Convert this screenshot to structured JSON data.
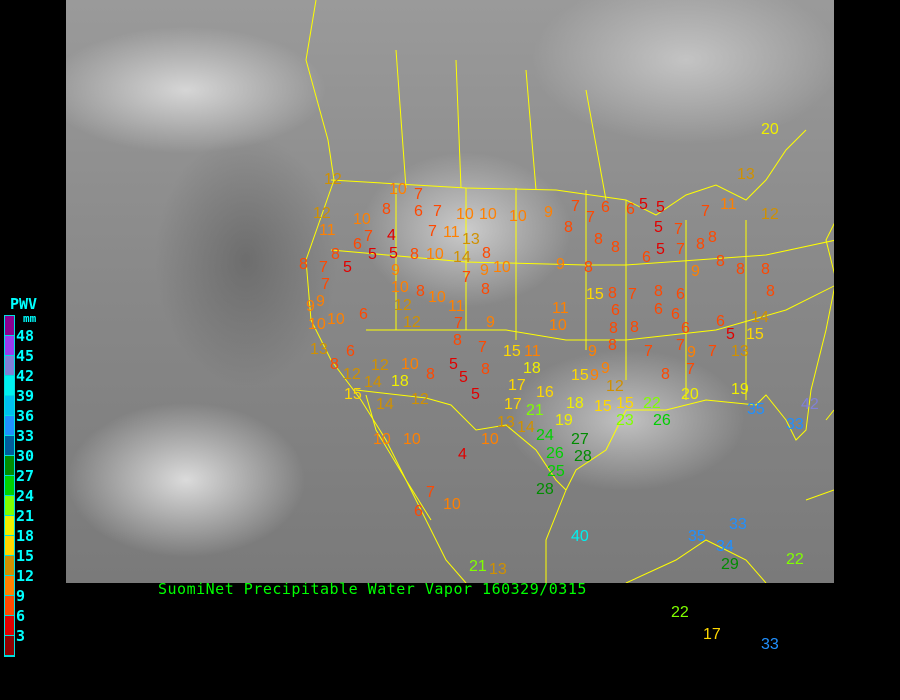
{
  "caption": "SuomiNet Precipitable Water Vapor 160329/0315",
  "legend": {
    "title": "PWV",
    "unit": "mm",
    "labels": [
      "48",
      "45",
      "42",
      "39",
      "36",
      "33",
      "30",
      "27",
      "24",
      "21",
      "18",
      "15",
      "12",
      "9",
      "6",
      "3"
    ],
    "colors": [
      "#8b0090",
      "#9a3cf0",
      "#8080d8",
      "#00f0f0",
      "#00c0f0",
      "#2090ff",
      "#005c9c",
      "#008c00",
      "#00d000",
      "#80ff00",
      "#f0f000",
      "#ffd800",
      "#d09000",
      "#ff8000",
      "#ff4800",
      "#e00000",
      "#900000"
    ]
  },
  "border_color": "#ffff00",
  "stations": [
    "12",
    "12",
    "11",
    "10",
    "7",
    "8",
    "10",
    "7",
    "6",
    "7",
    "10",
    "10",
    "10",
    "9",
    "7",
    "8",
    "7",
    "6",
    "6",
    "5",
    "5",
    "5",
    "7",
    "7",
    "11",
    "12",
    "13",
    "20",
    "6",
    "5",
    "4",
    "5",
    "8",
    "10",
    "7",
    "11",
    "13",
    "14",
    "8",
    "10",
    "9",
    "7",
    "8",
    "8",
    "7",
    "5",
    "8",
    "9",
    "10",
    "8",
    "10",
    "11",
    "7",
    "12",
    "12",
    "9",
    "9",
    "7",
    "9",
    "10",
    "10",
    "6",
    "13",
    "6",
    "8",
    "12",
    "12",
    "10",
    "8",
    "5",
    "5",
    "8",
    "7",
    "8",
    "14",
    "18",
    "12",
    "14",
    "15",
    "5",
    "15",
    "11",
    "17",
    "18",
    "16",
    "17",
    "21",
    "13",
    "14",
    "19",
    "18",
    "15",
    "12",
    "15",
    "11",
    "10",
    "9",
    "8",
    "15",
    "8",
    "7",
    "8",
    "8",
    "6",
    "5",
    "7",
    "8",
    "8",
    "9",
    "8",
    "8",
    "8",
    "8",
    "14",
    "15",
    "13",
    "7",
    "9",
    "7",
    "8",
    "7",
    "8",
    "9",
    "9",
    "15",
    "9",
    "8",
    "8",
    "6",
    "8",
    "6",
    "6",
    "6",
    "6",
    "7",
    "6",
    "5",
    "19",
    "20",
    "23",
    "22",
    "26",
    "24",
    "26",
    "27",
    "28",
    "25",
    "28",
    "10",
    "10",
    "4",
    "10",
    "7",
    "10",
    "6",
    "40",
    "13",
    "21",
    "35",
    "33",
    "34",
    "29",
    "22",
    "22",
    "17",
    "35",
    "33",
    "42",
    "33"
  ]
}
